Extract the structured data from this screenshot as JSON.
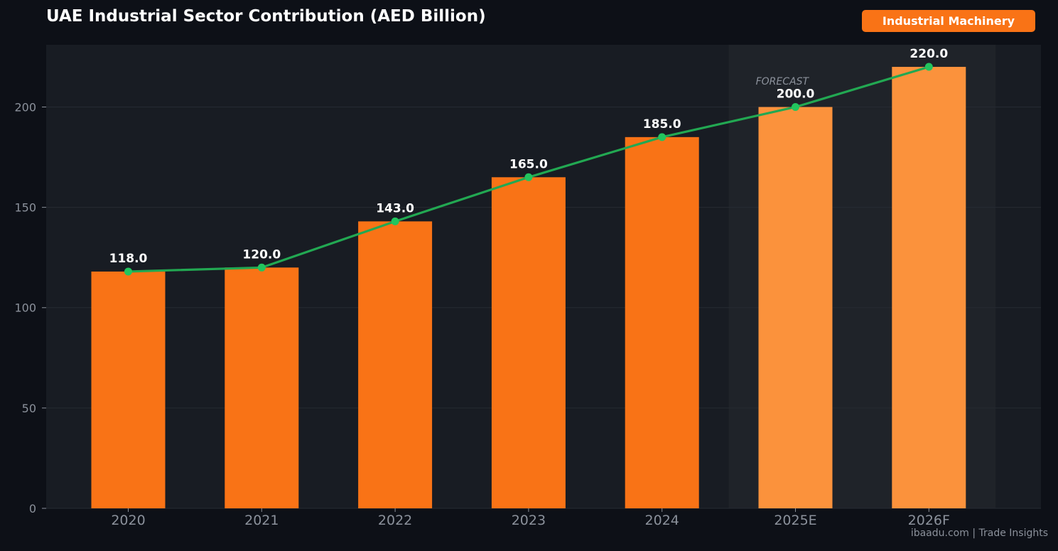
{
  "header": {
    "title": "UAE Industrial Sector Contribution (AED Billion)",
    "badge": "Industrial Machinery"
  },
  "footer": {
    "source": "ibaadu.com | Trade Insights"
  },
  "colors": {
    "bar_actual": "#f97316",
    "bar_forecast": "#fb923c",
    "line": "#22a852",
    "marker": "#22c55e",
    "plot_bg": "#181c23",
    "forecast_bg": "#1f2329",
    "grid": "#262b33",
    "text_muted": "#8b919b"
  },
  "chart_data": {
    "type": "bar",
    "title": "UAE Industrial Sector Contribution (AED Billion)",
    "categories": [
      "2020",
      "2021",
      "2022",
      "2023",
      "2024",
      "2025E",
      "2026F"
    ],
    "series": [
      {
        "values": [
          118.0,
          120.0,
          143.0,
          165.0,
          185.0,
          200.0,
          220.0
        ]
      }
    ],
    "data_labels": [
      "118.0",
      "120.0",
      "143.0",
      "165.0",
      "185.0",
      "200.0",
      "220.0"
    ],
    "forecast_flags": [
      false,
      false,
      false,
      false,
      false,
      true,
      true
    ],
    "forecast_label": "FORECAST",
    "overlay_line": true,
    "xlabel": "",
    "ylabel": "",
    "ylim": [
      0,
      231
    ],
    "yticks": [
      0,
      50,
      100,
      150,
      200
    ],
    "grid": true,
    "legend": "top-right"
  }
}
